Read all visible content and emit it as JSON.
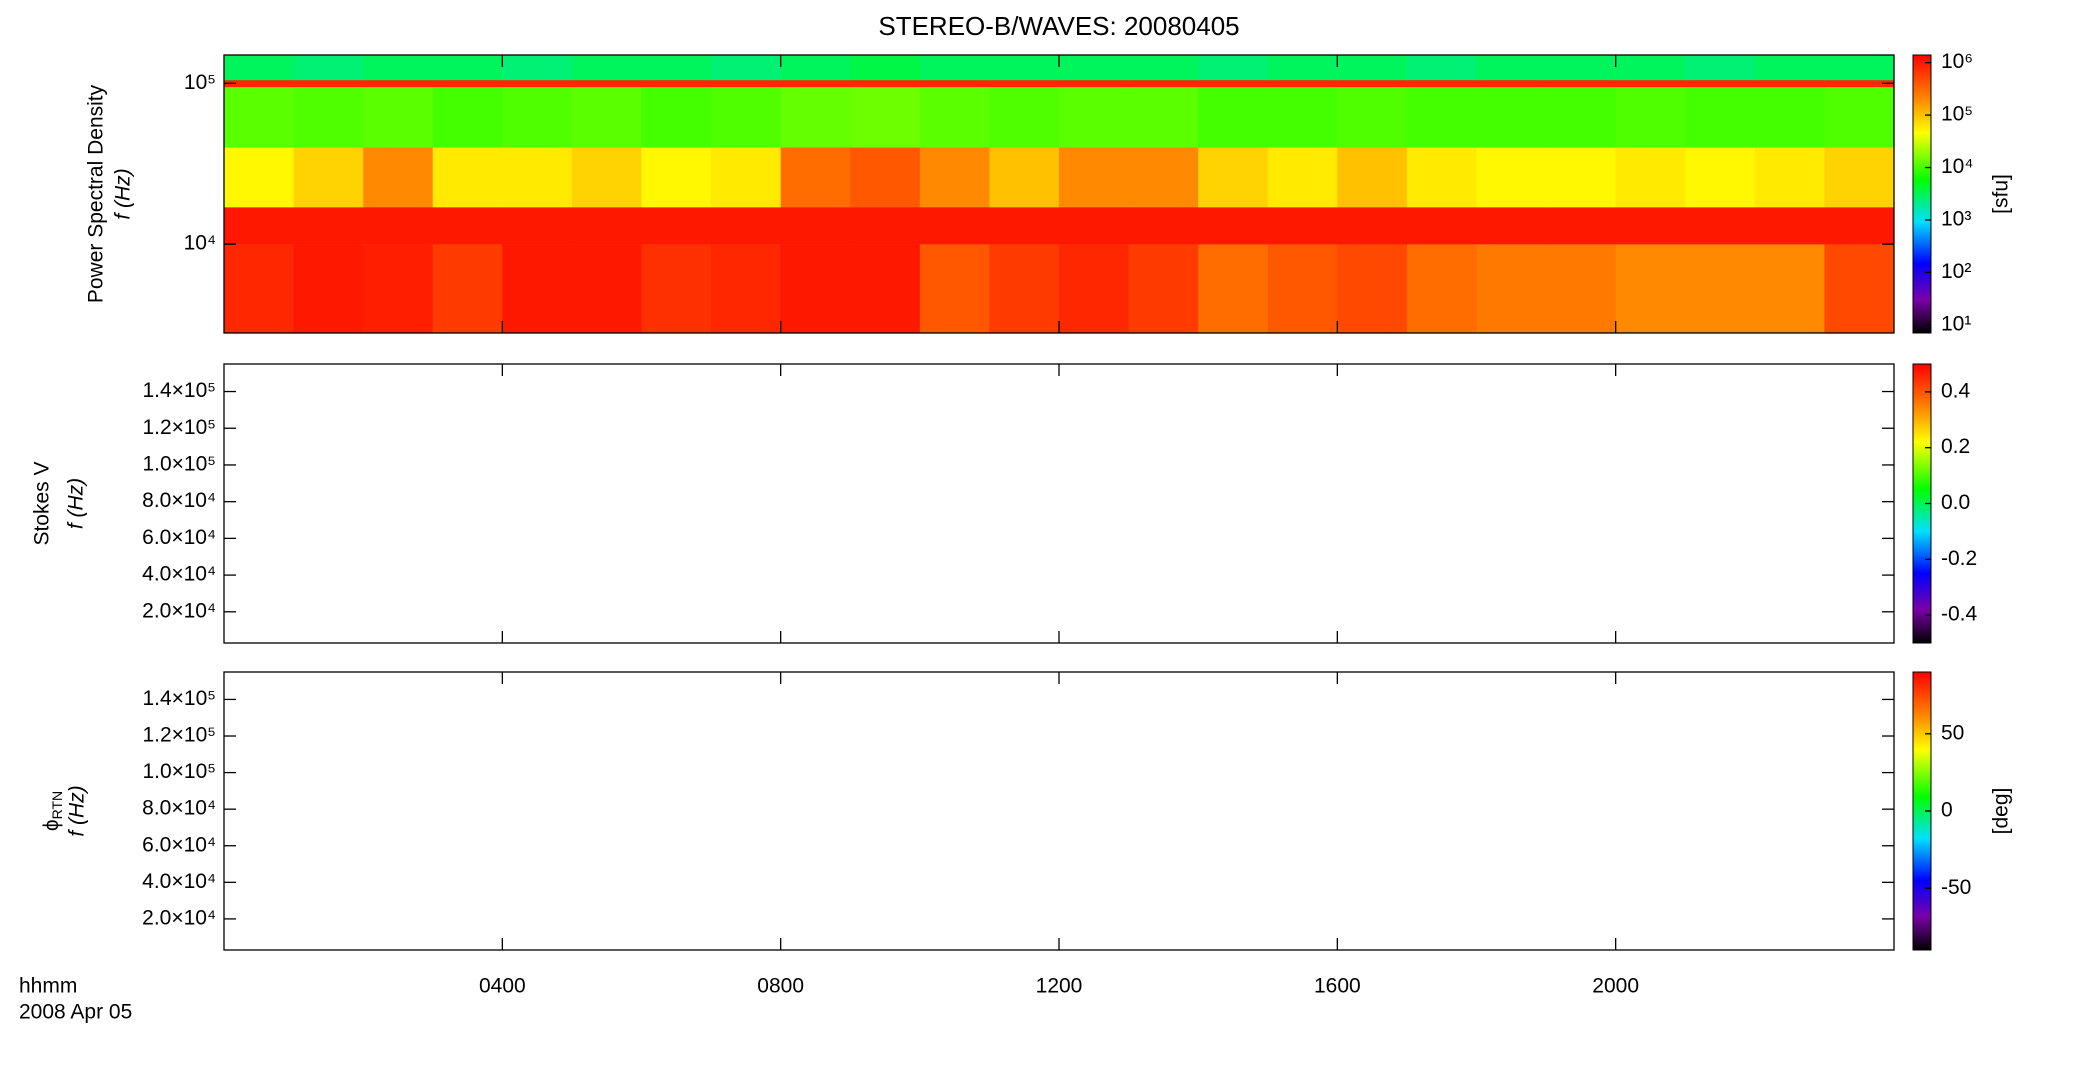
{
  "title": "STEREO-B/WAVES: 20080405",
  "footer": [
    "hhmm",
    "2008 Apr 05"
  ],
  "chart_data": [
    {
      "type": "heatmap",
      "ylabel": "Power Spectral Density",
      "ylabel2": "f (Hz)",
      "ylog": true,
      "ylim": [
        2800,
        150000
      ],
      "yticks": [
        {
          "value": 10000,
          "label": "10⁴"
        },
        {
          "value": 100000,
          "label": "10⁵"
        }
      ],
      "x": [
        0,
        1,
        2,
        3,
        4,
        5,
        6,
        7,
        8,
        9,
        10,
        11,
        12,
        13,
        14,
        15,
        16,
        17,
        18,
        19,
        20,
        21,
        22,
        23,
        24
      ],
      "y_bins": [
        2800,
        10000,
        17000,
        40000,
        95000,
        105000,
        150000
      ],
      "values": [
        [
          800000,
          1000000,
          900000,
          600000,
          1000000,
          1000000,
          700000,
          800000,
          1000000,
          1000000,
          400000,
          600000,
          800000,
          600000,
          300000,
          400000,
          500000,
          300000,
          250000,
          250000,
          200000,
          200000,
          200000,
          500000
        ],
        [
          1000000,
          1000000,
          1000000,
          1000000,
          1000000,
          1000000,
          1000000,
          1000000,
          1000000,
          1000000,
          1000000,
          1000000,
          1000000,
          1000000,
          1000000,
          1000000,
          1000000,
          1000000,
          1000000,
          1000000,
          1000000,
          1000000,
          1000000,
          1000000
        ],
        [
          50000,
          80000,
          200000,
          60000,
          60000,
          80000,
          50000,
          60000,
          300000,
          400000,
          200000,
          100000,
          200000,
          200000,
          80000,
          60000,
          100000,
          60000,
          50000,
          50000,
          60000,
          50000,
          60000,
          80000
        ],
        [
          12000,
          11000,
          12000,
          10000,
          11000,
          12000,
          10000,
          11000,
          13000,
          14000,
          12000,
          11000,
          12000,
          12000,
          10000,
          10000,
          11000,
          10000,
          10000,
          10000,
          11000,
          10000,
          10000,
          11000
        ],
        [
          800000,
          800000,
          800000,
          800000,
          800000,
          800000,
          800000,
          800000,
          800000,
          800000,
          800000,
          800000,
          800000,
          800000,
          800000,
          800000,
          800000,
          800000,
          800000,
          800000,
          800000,
          800000,
          800000,
          800000
        ],
        [
          3000,
          2500,
          3000,
          3000,
          2500,
          3000,
          3000,
          2500,
          3000,
          3500,
          3000,
          3000,
          3000,
          3000,
          2500,
          3000,
          3000,
          2500,
          3000,
          3000,
          3000,
          2500,
          3000,
          3000
        ]
      ],
      "colormap": "rainbow",
      "clog": true,
      "clim": [
        7,
        1400000
      ],
      "cticks": [
        {
          "value": 10,
          "label": "10¹"
        },
        {
          "value": 100,
          "label": "10²"
        },
        {
          "value": 1000,
          "label": "10³"
        },
        {
          "value": 10000,
          "label": "10⁴"
        },
        {
          "value": 100000,
          "label": "10⁵"
        },
        {
          "value": 1000000,
          "label": "10⁶"
        }
      ],
      "clabel": "[sfu]"
    },
    {
      "type": "heatmap",
      "ylabel": "Stokes V",
      "ylabel2": "f (Hz)",
      "ylim": [
        3000,
        155000
      ],
      "yticks": [
        {
          "value": 20000,
          "label": "2.0×10⁴"
        },
        {
          "value": 40000,
          "label": "4.0×10⁴"
        },
        {
          "value": 60000,
          "label": "6.0×10⁴"
        },
        {
          "value": 80000,
          "label": "8.0×10⁴"
        },
        {
          "value": 100000,
          "label": "1.0×10⁵"
        },
        {
          "value": 120000,
          "label": "1.2×10⁵"
        },
        {
          "value": 140000,
          "label": "1.4×10⁵"
        }
      ],
      "colormap": "rainbow",
      "clim": [
        -0.5,
        0.5
      ],
      "cticks": [
        -0.4,
        -0.2,
        {
          "value": 0,
          "label": "0.0"
        },
        0.2,
        0.4
      ]
    },
    {
      "type": "heatmap",
      "ylabel": "ϕ",
      "ylabel_subscript": "RTN",
      "ylabel2": "f (Hz)",
      "ylim": [
        3000,
        155000
      ],
      "yticks": [
        {
          "value": 20000,
          "label": "2.0×10⁴"
        },
        {
          "value": 40000,
          "label": "4.0×10⁴"
        },
        {
          "value": 60000,
          "label": "6.0×10⁴"
        },
        {
          "value": 80000,
          "label": "8.0×10⁴"
        },
        {
          "value": 100000,
          "label": "1.0×10⁵"
        },
        {
          "value": 120000,
          "label": "1.2×10⁵"
        },
        {
          "value": 140000,
          "label": "1.4×10⁵"
        }
      ],
      "colormap": "rainbow",
      "clim": [
        -90,
        90
      ],
      "cticks": [
        -50,
        0,
        50
      ],
      "clabel": "[deg]",
      "xlim": [
        0,
        24
      ],
      "xticks": [
        {
          "value": 4,
          "label": "0400"
        },
        {
          "value": 8,
          "label": "0800"
        },
        {
          "value": 12,
          "label": "1200"
        },
        {
          "value": 16,
          "label": "1600"
        },
        {
          "value": 20,
          "label": "2000"
        }
      ]
    }
  ]
}
